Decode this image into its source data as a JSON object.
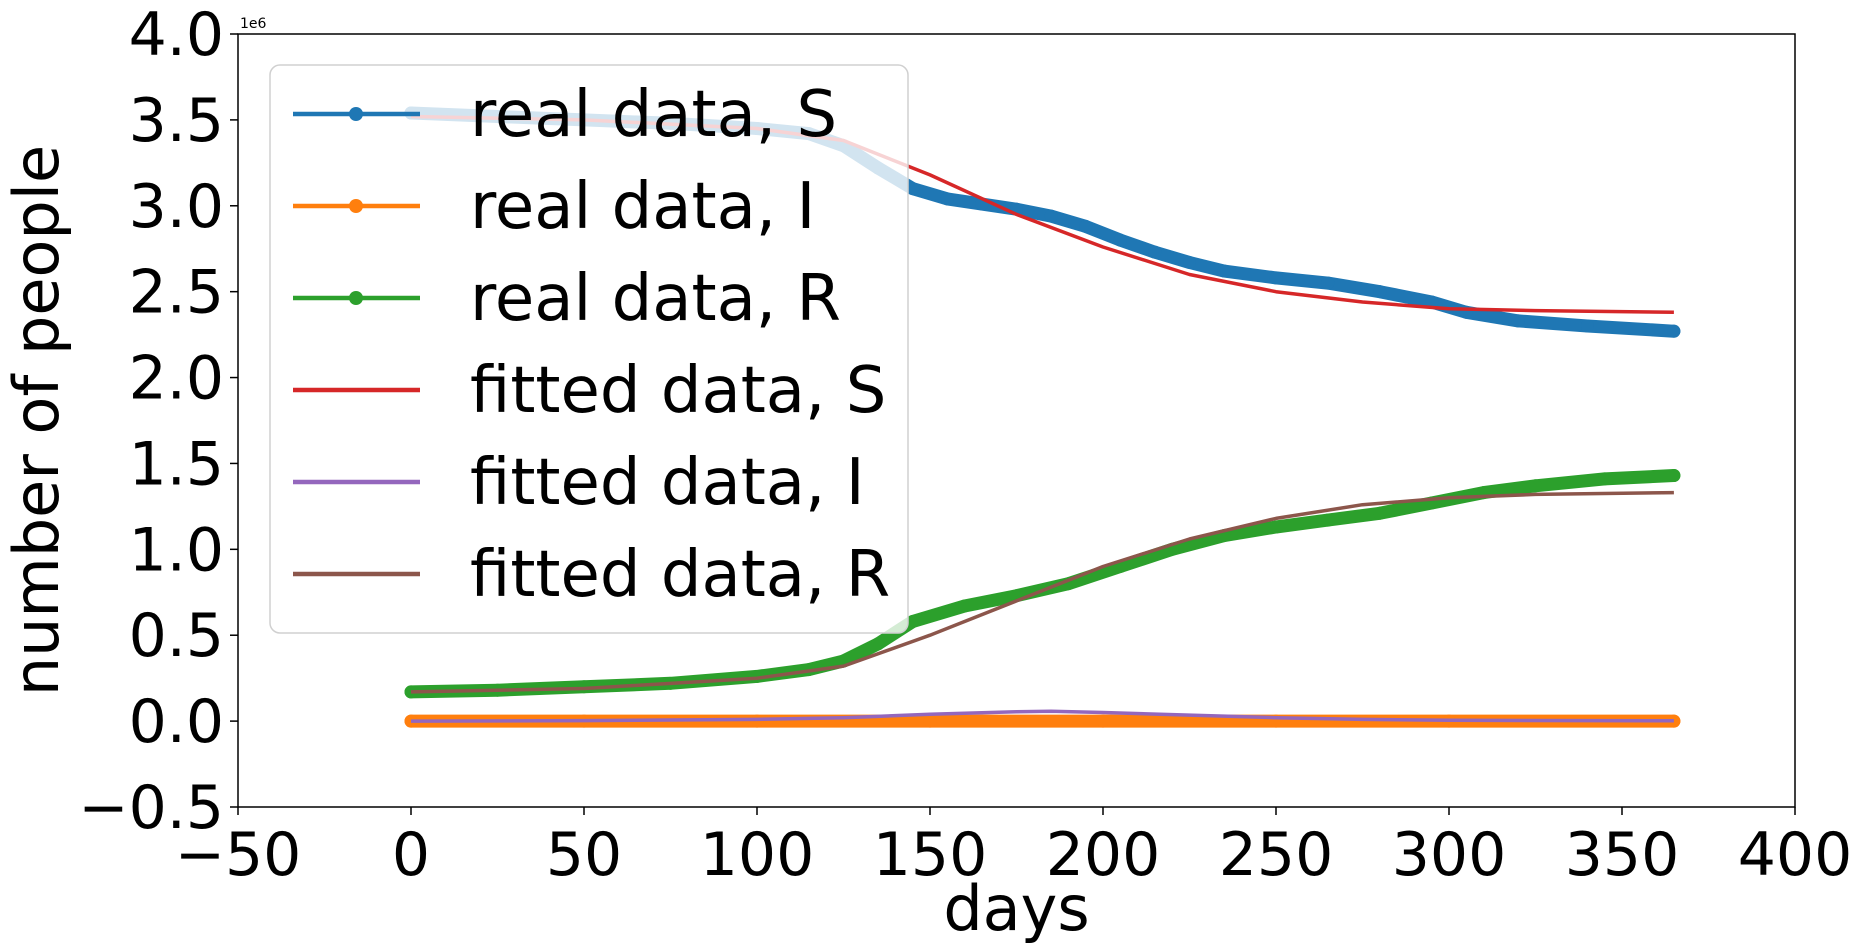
{
  "chart_data": {
    "type": "line",
    "title": "",
    "xlabel": "days",
    "ylabel": "number of people",
    "y_offset_text": "1e6",
    "xlim": [
      -50,
      400
    ],
    "ylim": [
      -0.5,
      4.0
    ],
    "xticks": [
      -50,
      0,
      50,
      100,
      150,
      200,
      250,
      300,
      350,
      400
    ],
    "xtick_labels": [
      "−50",
      "0",
      "50",
      "100",
      "150",
      "200",
      "250",
      "300",
      "350",
      "400"
    ],
    "yticks": [
      -0.5,
      0.0,
      0.5,
      1.0,
      1.5,
      2.0,
      2.5,
      3.0,
      3.5,
      4.0
    ],
    "ytick_labels": [
      "−0.5",
      "0.0",
      "0.5",
      "1.0",
      "1.5",
      "2.0",
      "2.5",
      "3.0",
      "3.5",
      "4.0"
    ],
    "grid": false,
    "legend_position": "upper-left",
    "series": [
      {
        "name": "real data, S",
        "color": "#1f77b4",
        "style": "marker",
        "x": [
          0,
          25,
          50,
          75,
          100,
          115,
          125,
          135,
          145,
          155,
          165,
          175,
          185,
          195,
          205,
          215,
          225,
          235,
          250,
          265,
          280,
          295,
          305,
          320,
          340,
          365
        ],
        "y": [
          3.54,
          3.52,
          3.5,
          3.48,
          3.45,
          3.42,
          3.35,
          3.22,
          3.1,
          3.04,
          3.01,
          2.98,
          2.94,
          2.88,
          2.8,
          2.73,
          2.67,
          2.62,
          2.58,
          2.55,
          2.5,
          2.44,
          2.38,
          2.33,
          2.3,
          2.27
        ]
      },
      {
        "name": "real data, I",
        "color": "#ff7f0e",
        "style": "marker",
        "x": [
          0,
          50,
          100,
          150,
          200,
          250,
          300,
          365
        ],
        "y": [
          0.0,
          0.0,
          0.0,
          0.0,
          0.0,
          0.0,
          0.0,
          0.0
        ]
      },
      {
        "name": "real data, R",
        "color": "#2ca02c",
        "style": "marker",
        "x": [
          0,
          25,
          50,
          75,
          100,
          115,
          125,
          135,
          145,
          160,
          175,
          190,
          205,
          220,
          235,
          250,
          265,
          280,
          295,
          310,
          325,
          345,
          365
        ],
        "y": [
          0.17,
          0.18,
          0.2,
          0.22,
          0.26,
          0.3,
          0.35,
          0.45,
          0.58,
          0.67,
          0.73,
          0.8,
          0.9,
          1.0,
          1.08,
          1.13,
          1.17,
          1.21,
          1.27,
          1.33,
          1.37,
          1.41,
          1.43
        ]
      },
      {
        "name": "fitted data, S",
        "color": "#d62728",
        "style": "line",
        "x": [
          0,
          50,
          100,
          125,
          150,
          175,
          200,
          225,
          250,
          275,
          300,
          325,
          365
        ],
        "y": [
          3.52,
          3.5,
          3.45,
          3.38,
          3.18,
          2.95,
          2.76,
          2.6,
          2.5,
          2.44,
          2.4,
          2.39,
          2.38
        ]
      },
      {
        "name": "fitted data, I",
        "color": "#9467bd",
        "style": "line",
        "x": [
          0,
          50,
          100,
          125,
          150,
          175,
          185,
          200,
          225,
          250,
          275,
          300,
          365
        ],
        "y": [
          0.0,
          0.003,
          0.01,
          0.02,
          0.04,
          0.055,
          0.057,
          0.05,
          0.035,
          0.02,
          0.01,
          0.005,
          0.002
        ]
      },
      {
        "name": "fitted data, R",
        "color": "#8c564b",
        "style": "line",
        "x": [
          0,
          50,
          100,
          125,
          150,
          175,
          200,
          225,
          250,
          275,
          300,
          325,
          365
        ],
        "y": [
          0.17,
          0.19,
          0.25,
          0.32,
          0.5,
          0.7,
          0.9,
          1.06,
          1.18,
          1.26,
          1.3,
          1.32,
          1.33
        ]
      }
    ]
  }
}
